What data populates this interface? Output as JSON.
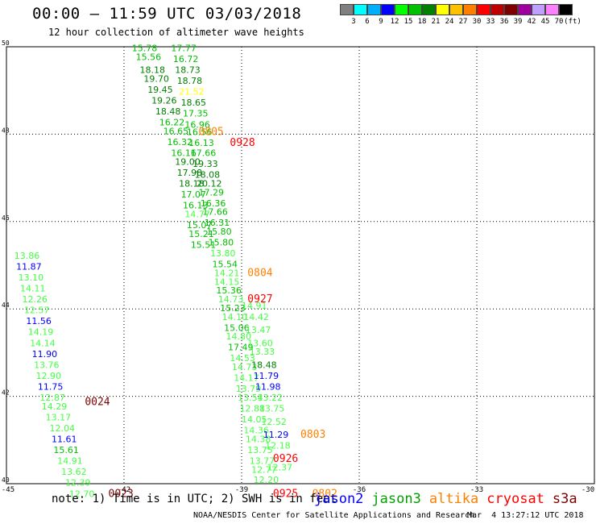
{
  "header": {
    "title": "00:00 – 11:59 UTC 03/03/2018",
    "subtitle": "12 hour collection of altimeter wave heights"
  },
  "colorbar": {
    "colors": [
      "#808080",
      "#00ffff",
      "#00b0ff",
      "#0000ff",
      "#00ff00",
      "#00c000",
      "#008000",
      "#ffff00",
      "#ffc000",
      "#ff8000",
      "#ff0000",
      "#c00000",
      "#800000",
      "#a000a0",
      "#c0a0ff",
      "#ff80ff",
      "#000000"
    ],
    "labels": [
      "3",
      "6",
      "9",
      "12",
      "15",
      "18",
      "21",
      "24",
      "27",
      "30",
      "33",
      "36",
      "39",
      "42",
      "45",
      "70",
      "(ft)"
    ]
  },
  "chart_data": {
    "type": "scatter",
    "xlim": [
      -45,
      -30
    ],
    "ylim": [
      40,
      50
    ],
    "x_ticks": [
      "-45",
      "-42",
      "-39",
      "-36",
      "-33",
      "-30"
    ],
    "y_ticks": [
      "40",
      "42",
      "44",
      "46",
      "48",
      "50"
    ],
    "grid": true,
    "points": [
      {
        "x": -41.8,
        "y": 49.9,
        "t": "15.78",
        "c": "#00c000"
      },
      {
        "x": -41.7,
        "y": 49.7,
        "t": "15.56",
        "c": "#00c000"
      },
      {
        "x": -41.6,
        "y": 49.4,
        "t": "18.18",
        "c": "#008000"
      },
      {
        "x": -41.5,
        "y": 49.2,
        "t": "19.70",
        "c": "#008000"
      },
      {
        "x": -41.4,
        "y": 48.95,
        "t": "19.45",
        "c": "#008000"
      },
      {
        "x": -41.3,
        "y": 48.7,
        "t": "19.26",
        "c": "#008000"
      },
      {
        "x": -41.2,
        "y": 48.45,
        "t": "18.48",
        "c": "#008000"
      },
      {
        "x": -41.1,
        "y": 48.2,
        "t": "16.22",
        "c": "#00c000"
      },
      {
        "x": -41.0,
        "y": 48.0,
        "t": "16.65",
        "c": "#00c000"
      },
      {
        "x": -40.9,
        "y": 47.75,
        "t": "16.32",
        "c": "#00c000"
      },
      {
        "x": -40.8,
        "y": 47.5,
        "t": "16.16",
        "c": "#00c000"
      },
      {
        "x": -40.7,
        "y": 47.3,
        "t": "19.00",
        "c": "#008000"
      },
      {
        "x": -40.65,
        "y": 47.05,
        "t": "17.98",
        "c": "#008000"
      },
      {
        "x": -40.6,
        "y": 46.8,
        "t": "18.18",
        "c": "#008000"
      },
      {
        "x": -40.55,
        "y": 46.55,
        "t": "17.07",
        "c": "#00c000"
      },
      {
        "x": -40.5,
        "y": 46.3,
        "t": "16.13",
        "c": "#00c000"
      },
      {
        "x": -40.45,
        "y": 46.1,
        "t": "14.77",
        "c": "#44ff44"
      },
      {
        "x": -40.4,
        "y": 45.85,
        "t": "15.07",
        "c": "#00c000"
      },
      {
        "x": -40.35,
        "y": 45.65,
        "t": "15.21",
        "c": "#00c000"
      },
      {
        "x": -40.3,
        "y": 45.4,
        "t": "15.51",
        "c": "#00c000"
      },
      {
        "x": -40.8,
        "y": 49.9,
        "t": "17.77",
        "c": "#00c000"
      },
      {
        "x": -40.75,
        "y": 49.65,
        "t": "16.72",
        "c": "#00c000"
      },
      {
        "x": -40.7,
        "y": 49.4,
        "t": "18.73",
        "c": "#008000"
      },
      {
        "x": -40.65,
        "y": 49.15,
        "t": "18.78",
        "c": "#008000"
      },
      {
        "x": -40.6,
        "y": 48.9,
        "t": "21.52",
        "c": "#ffff00"
      },
      {
        "x": -40.55,
        "y": 48.65,
        "t": "18.65",
        "c": "#008000"
      },
      {
        "x": -40.5,
        "y": 48.4,
        "t": "17.35",
        "c": "#00c000"
      },
      {
        "x": -40.45,
        "y": 48.15,
        "t": "16.96",
        "c": "#00c000"
      },
      {
        "x": -40.4,
        "y": 47.98,
        "t": "16.56",
        "c": "#00c000"
      },
      {
        "x": -40.35,
        "y": 47.73,
        "t": "16.13",
        "c": "#00c000"
      },
      {
        "x": -40.3,
        "y": 47.5,
        "t": "17.66",
        "c": "#00c000"
      },
      {
        "x": -40.25,
        "y": 47.25,
        "t": "19.33",
        "c": "#008000"
      },
      {
        "x": -40.2,
        "y": 47.0,
        "t": "18.08",
        "c": "#008000"
      },
      {
        "x": -40.15,
        "y": 46.8,
        "t": "20.12",
        "c": "#008000"
      },
      {
        "x": -40.1,
        "y": 46.6,
        "t": "17.29",
        "c": "#00c000"
      },
      {
        "x": -40.05,
        "y": 46.35,
        "t": "16.36",
        "c": "#00c000"
      },
      {
        "x": -40.0,
        "y": 46.15,
        "t": "17.66",
        "c": "#00c000"
      },
      {
        "x": -39.95,
        "y": 45.9,
        "t": "16.31",
        "c": "#00c000"
      },
      {
        "x": -39.9,
        "y": 45.7,
        "t": "15.80",
        "c": "#00c000"
      },
      {
        "x": -39.85,
        "y": 45.45,
        "t": "15.80",
        "c": "#00c000"
      },
      {
        "x": -39.8,
        "y": 45.2,
        "t": "13.80",
        "c": "#44ff44"
      },
      {
        "x": -39.75,
        "y": 44.95,
        "t": "15.54",
        "c": "#00c000"
      },
      {
        "x": -39.7,
        "y": 44.75,
        "t": "14.21",
        "c": "#44ff44"
      },
      {
        "x": -39.7,
        "y": 44.55,
        "t": "14.15",
        "c": "#44ff44"
      },
      {
        "x": -39.65,
        "y": 44.35,
        "t": "15.36",
        "c": "#00c000"
      },
      {
        "x": -39.6,
        "y": 44.15,
        "t": "14.73",
        "c": "#44ff44"
      },
      {
        "x": -39.55,
        "y": 43.95,
        "t": "15.23",
        "c": "#00c000"
      },
      {
        "x": -39.5,
        "y": 43.75,
        "t": "14.10",
        "c": "#44ff44"
      },
      {
        "x": -39.45,
        "y": 43.5,
        "t": "15.06",
        "c": "#00c000"
      },
      {
        "x": -39.4,
        "y": 43.3,
        "t": "14.80",
        "c": "#44ff44"
      },
      {
        "x": -39.35,
        "y": 43.05,
        "t": "17.49",
        "c": "#00c000"
      },
      {
        "x": -39.3,
        "y": 42.8,
        "t": "14.53",
        "c": "#44ff44"
      },
      {
        "x": -39.25,
        "y": 42.6,
        "t": "14.73",
        "c": "#44ff44"
      },
      {
        "x": -39.2,
        "y": 42.35,
        "t": "14.17",
        "c": "#44ff44"
      },
      {
        "x": -39.15,
        "y": 42.1,
        "t": "13.79",
        "c": "#44ff44"
      },
      {
        "x": -39.1,
        "y": 41.9,
        "t": "13.54",
        "c": "#44ff44"
      },
      {
        "x": -39.05,
        "y": 41.65,
        "t": "12.88",
        "c": "#44ff44"
      },
      {
        "x": -39.0,
        "y": 41.4,
        "t": "14.05",
        "c": "#44ff44"
      },
      {
        "x": -38.95,
        "y": 41.15,
        "t": "14.36",
        "c": "#44ff44"
      },
      {
        "x": -38.9,
        "y": 40.95,
        "t": "14.38",
        "c": "#44ff44"
      },
      {
        "x": -38.85,
        "y": 40.7,
        "t": "13.75",
        "c": "#44ff44"
      },
      {
        "x": -38.8,
        "y": 40.45,
        "t": "13.77",
        "c": "#44ff44"
      },
      {
        "x": -38.75,
        "y": 40.25,
        "t": "12.77",
        "c": "#44ff44"
      },
      {
        "x": -38.7,
        "y": 40.02,
        "t": "12.20",
        "c": "#44ff44"
      },
      {
        "x": -39.0,
        "y": 44.0,
        "t": "14.91",
        "c": "#44ff44"
      },
      {
        "x": -38.95,
        "y": 43.75,
        "t": "14.42",
        "c": "#44ff44"
      },
      {
        "x": -38.9,
        "y": 43.45,
        "t": "13.47",
        "c": "#44ff44"
      },
      {
        "x": -38.85,
        "y": 43.15,
        "t": "13.60",
        "c": "#44ff44"
      },
      {
        "x": -38.8,
        "y": 42.95,
        "t": "13.33",
        "c": "#44ff44"
      },
      {
        "x": -38.75,
        "y": 42.65,
        "t": "18.48",
        "c": "#008000"
      },
      {
        "x": -38.7,
        "y": 42.4,
        "t": "11.79",
        "c": "#0000ff"
      },
      {
        "x": -38.65,
        "y": 42.15,
        "t": "11.98",
        "c": "#0000ff"
      },
      {
        "x": -38.6,
        "y": 41.9,
        "t": "13.22",
        "c": "#44ff44"
      },
      {
        "x": -38.55,
        "y": 41.65,
        "t": "13.75",
        "c": "#44ff44"
      },
      {
        "x": -38.5,
        "y": 41.35,
        "t": "12.52",
        "c": "#44ff44"
      },
      {
        "x": -38.45,
        "y": 41.05,
        "t": "11.29",
        "c": "#0000ff"
      },
      {
        "x": -38.4,
        "y": 40.8,
        "t": "12.18",
        "c": "#44ff44"
      },
      {
        "x": -38.35,
        "y": 40.3,
        "t": "12.37",
        "c": "#44ff44"
      },
      {
        "x": -44.8,
        "y": 45.15,
        "t": "13.86",
        "c": "#44ff44"
      },
      {
        "x": -44.75,
        "y": 44.9,
        "t": "11.87",
        "c": "#0000ff"
      },
      {
        "x": -44.7,
        "y": 44.65,
        "t": "13.10",
        "c": "#44ff44"
      },
      {
        "x": -44.65,
        "y": 44.4,
        "t": "14.11",
        "c": "#44ff44"
      },
      {
        "x": -44.6,
        "y": 44.15,
        "t": "12.26",
        "c": "#44ff44"
      },
      {
        "x": -44.55,
        "y": 43.9,
        "t": "12.57",
        "c": "#44ff44"
      },
      {
        "x": -44.5,
        "y": 43.65,
        "t": "11.56",
        "c": "#0000ff"
      },
      {
        "x": -44.45,
        "y": 43.4,
        "t": "14.19",
        "c": "#44ff44"
      },
      {
        "x": -44.4,
        "y": 43.15,
        "t": "14.14",
        "c": "#44ff44"
      },
      {
        "x": -44.35,
        "y": 42.9,
        "t": "11.90",
        "c": "#0000ff"
      },
      {
        "x": -44.3,
        "y": 42.65,
        "t": "13.76",
        "c": "#44ff44"
      },
      {
        "x": -44.25,
        "y": 42.4,
        "t": "12.90",
        "c": "#44ff44"
      },
      {
        "x": -44.2,
        "y": 42.15,
        "t": "11.75",
        "c": "#0000ff"
      },
      {
        "x": -44.15,
        "y": 41.9,
        "t": "12.87",
        "c": "#44ff44"
      },
      {
        "x": -44.1,
        "y": 41.7,
        "t": "14.29",
        "c": "#44ff44"
      },
      {
        "x": -44.0,
        "y": 41.45,
        "t": "13.17",
        "c": "#44ff44"
      },
      {
        "x": -43.9,
        "y": 41.2,
        "t": "12.04",
        "c": "#44ff44"
      },
      {
        "x": -43.85,
        "y": 40.95,
        "t": "11.61",
        "c": "#0000ff"
      },
      {
        "x": -43.8,
        "y": 40.7,
        "t": "15.61",
        "c": "#00c000"
      },
      {
        "x": -43.7,
        "y": 40.45,
        "t": "14.91",
        "c": "#44ff44"
      },
      {
        "x": -43.6,
        "y": 40.2,
        "t": "13.62",
        "c": "#44ff44"
      },
      {
        "x": -43.5,
        "y": 39.95,
        "t": "12.39",
        "c": "#44ff44"
      },
      {
        "x": -43.4,
        "y": 39.7,
        "t": "12.70",
        "c": "#44ff44"
      }
    ],
    "time_labels": [
      {
        "x": -40.1,
        "y": 47.98,
        "t": "0805",
        "c": "#ff8000"
      },
      {
        "x": -39.3,
        "y": 47.73,
        "t": "0928",
        "c": "#ff0000"
      },
      {
        "x": -38.85,
        "y": 44.75,
        "t": "0804",
        "c": "#ff8000"
      },
      {
        "x": -38.85,
        "y": 44.15,
        "t": "0927",
        "c": "#ff0000"
      },
      {
        "x": -43.0,
        "y": 41.8,
        "t": "0024",
        "c": "#800000"
      },
      {
        "x": -42.4,
        "y": 39.7,
        "t": "0023",
        "c": "#800000"
      },
      {
        "x": -37.5,
        "y": 41.05,
        "t": "0803",
        "c": "#ff8000"
      },
      {
        "x": -38.2,
        "y": 40.5,
        "t": "0926",
        "c": "#ff0000"
      },
      {
        "x": -38.2,
        "y": 39.7,
        "t": "0925",
        "c": "#ff0000"
      },
      {
        "x": -37.2,
        "y": 39.7,
        "t": "0802",
        "c": "#ff8000"
      }
    ]
  },
  "footer": {
    "note": "note: 1) Time is in UTC; 2) SWH is in feet",
    "legend": [
      {
        "name": "jason2",
        "color": "#0000ff"
      },
      {
        "name": "jason3",
        "color": "#00a000"
      },
      {
        "name": "altika",
        "color": "#ff8000"
      },
      {
        "name": "cryosat",
        "color": "#ff0000"
      },
      {
        "name": "s3a",
        "color": "#800000"
      }
    ],
    "credit": "NOAA/NESDIS Center for Satellite Applications and Research",
    "credit_date": "Mar  4 13:27:12 UTC 2018"
  }
}
